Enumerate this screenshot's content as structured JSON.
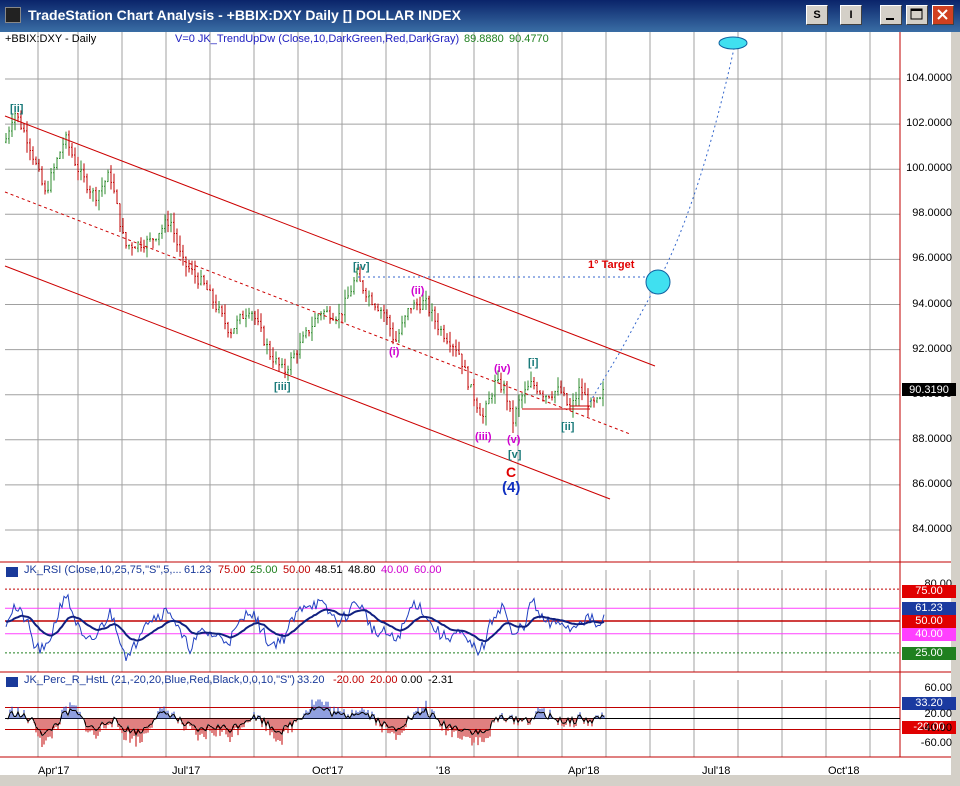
{
  "window": {
    "title": "TradeStation Chart Analysis - +BBIX:DXY Daily [] DOLLAR INDEX",
    "btn_s": "S",
    "btn_i": "I"
  },
  "chart": {
    "symbol_label": "+BBIX:DXY - Daily",
    "indicator_label": "V=0  JK_TrendUpDw (Close,10,DarkGreen,Red,DarkGray)",
    "indicator_val1": "89.8880",
    "indicator_val2": "90.4770",
    "price_axis": [
      "104.0000",
      "102.0000",
      "100.0000",
      "98.0000",
      "96.0000",
      "94.0000",
      "92.0000",
      "90.0000",
      "88.0000",
      "86.0000",
      "84.0000"
    ],
    "last_price": "90.3190",
    "target_label": "1° Target",
    "waves": {
      "ii_top": "[ii]",
      "iv": "[iv]",
      "iii_bracket": "[iii]",
      "i_small": "(i)",
      "ii_small": "(ii)",
      "iii_small": "(iii)",
      "iv_small": "(iv)",
      "v_small": "(v)",
      "v_bracket": "[v]",
      "i_bracket": "[i]",
      "ii_bracket2": "[ii]",
      "c_label": "C",
      "four_label": "(4)"
    }
  },
  "rsi": {
    "name": "JK_RSI (Close,10,25,75,\"S\",5,...",
    "v1": "61.23",
    "v2": "75.00",
    "v3": "25.00",
    "v4": "50.00",
    "v5": "48.51",
    "v6": "48.80",
    "v7": "40.00",
    "v8": "60.00",
    "axis_80": "80.00",
    "box_75": "75.00",
    "box_6123": "61.23",
    "box_50": "50.00",
    "box_40": "40.00",
    "box_25": "25.00"
  },
  "perc": {
    "name": "JK_Perc_R_HstL (21,-20,20,Blue,Red,Black,0,0,10,\"S\")",
    "v1": "33.20",
    "v2": "-20.00",
    "v3": "20.00",
    "v4": "0.00",
    "v5": "-2.31",
    "axis_60": "60.00",
    "box_3320": "33.20",
    "axis_2000": "20.00",
    "box_m20": "-20.00",
    "axis_m40": "-40.00",
    "axis_m60": "-60.00"
  },
  "x_axis": [
    "Apr'17",
    "Jul'17",
    "Oct'17",
    "'18",
    "Apr'18",
    "Jul'18",
    "Oct'18"
  ],
  "colors": {
    "up": "#2e8b2e",
    "down": "#c00000",
    "channel": "#cc0000",
    "target": "#3366cc",
    "magenta": "#d000d0",
    "teal": "#1a7a7a"
  }
}
